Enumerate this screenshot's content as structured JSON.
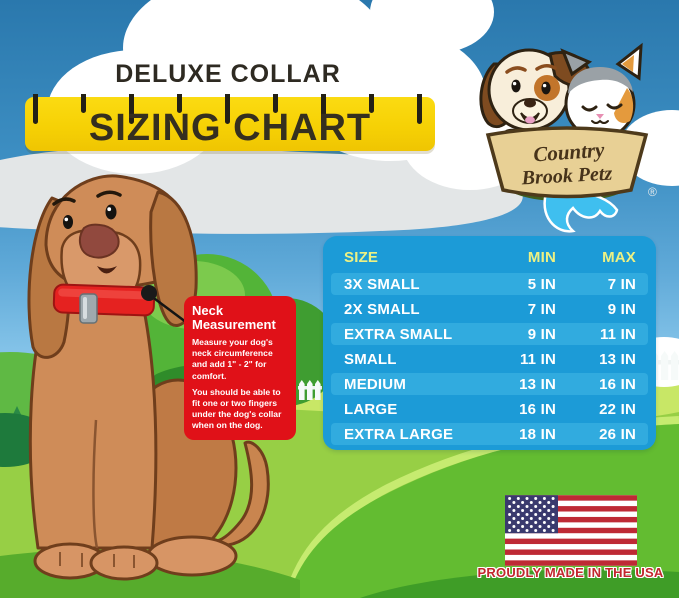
{
  "header": {
    "product_line": "DELUXE COLLAR",
    "title": "SIZING CHART"
  },
  "logo": {
    "brand_top": "Country",
    "brand_bottom": "Brook Petz",
    "registered_mark": "®"
  },
  "callout": {
    "heading": "Neck Measurement",
    "body_1": "Measure your dog's neck circumference and add 1\" - 2\" for comfort.",
    "body_2": "You should be able to fit one or two fingers under the dog's collar when on the dog."
  },
  "chart_data": {
    "type": "table",
    "title": "Deluxe Collar Sizing Chart",
    "unit": "inches (neck circumference)",
    "columns": [
      "SIZE",
      "MIN",
      "MAX"
    ],
    "rows": [
      {
        "size": "3X SMALL",
        "min": "5 IN",
        "max": "7 IN",
        "min_value": 5,
        "max_value": 7
      },
      {
        "size": "2X SMALL",
        "min": "7 IN",
        "max": "9 IN",
        "min_value": 7,
        "max_value": 9
      },
      {
        "size": "EXTRA SMALL",
        "min": "9 IN",
        "max": "11 IN",
        "min_value": 9,
        "max_value": 11
      },
      {
        "size": "SMALL",
        "min": "11 IN",
        "max": "13 IN",
        "min_value": 11,
        "max_value": 13
      },
      {
        "size": "MEDIUM",
        "min": "13 IN",
        "max": "16 IN",
        "min_value": 13,
        "max_value": 16
      },
      {
        "size": "LARGE",
        "min": "16 IN",
        "max": "22 IN",
        "min_value": 16,
        "max_value": 22
      },
      {
        "size": "EXTRA LARGE",
        "min": "18 IN",
        "max": "26 IN",
        "min_value": 18,
        "max_value": 26
      }
    ]
  },
  "footer": {
    "made_in": "PROUDLY MADE IN THE USA"
  },
  "colors": {
    "banner_yellow": "#F6D105",
    "table_blue": "#1C9BD7",
    "table_stripe": "#31ABDF",
    "table_header_yellow": "#EDF183",
    "callout_red": "#E01118",
    "collar_red": "#E52220",
    "flag_red": "#BE2A35",
    "flag_blue": "#3A3A6E",
    "grass_green": "#97CF45"
  }
}
